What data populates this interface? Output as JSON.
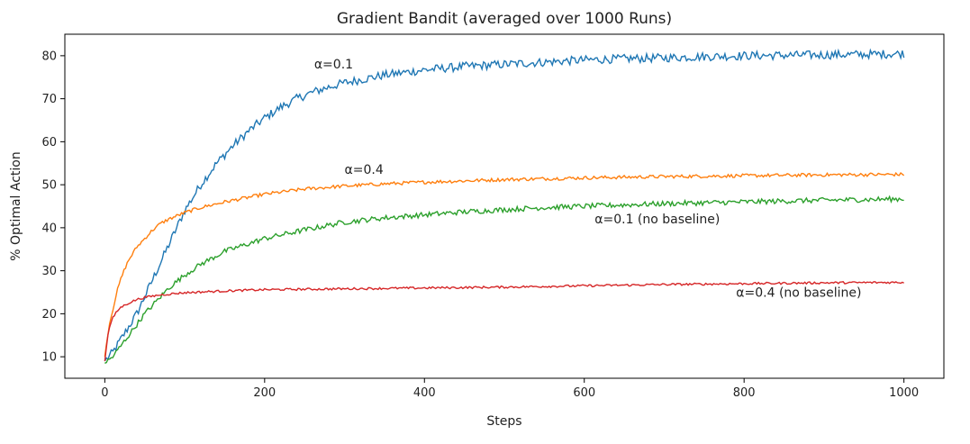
{
  "chart_data": {
    "type": "line",
    "title": "Gradient Bandit (averaged over 1000 Runs)",
    "xlabel": "Steps",
    "ylabel": "% Optimal Action",
    "xlim": [
      -50,
      1050
    ],
    "ylim": [
      5,
      85
    ],
    "xticks": [
      0,
      200,
      400,
      600,
      800,
      1000
    ],
    "yticks": [
      10,
      20,
      30,
      40,
      50,
      60,
      70,
      80
    ],
    "grid": false,
    "legend": "none",
    "series": [
      {
        "color": "#1f77b4",
        "points": [
          [
            0,
            9
          ],
          [
            10,
            11
          ],
          [
            20,
            14
          ],
          [
            30,
            17
          ],
          [
            40,
            20
          ],
          [
            50,
            24
          ],
          [
            60,
            28
          ],
          [
            70,
            32
          ],
          [
            80,
            36
          ],
          [
            90,
            40
          ],
          [
            100,
            44
          ],
          [
            120,
            50
          ],
          [
            140,
            55
          ],
          [
            160,
            59
          ],
          [
            180,
            62.5
          ],
          [
            200,
            65.5
          ],
          [
            220,
            68
          ],
          [
            240,
            70
          ],
          [
            260,
            71.5
          ],
          [
            280,
            72.7
          ],
          [
            300,
            73.7
          ],
          [
            350,
            75.5
          ],
          [
            400,
            76.7
          ],
          [
            450,
            77.5
          ],
          [
            500,
            78
          ],
          [
            550,
            78.5
          ],
          [
            600,
            79
          ],
          [
            650,
            79.3
          ],
          [
            700,
            79.5
          ],
          [
            750,
            79.8
          ],
          [
            800,
            80
          ],
          [
            850,
            80.1
          ],
          [
            900,
            80.2
          ],
          [
            950,
            80.3
          ],
          [
            1000,
            80.5
          ]
        ],
        "noise": 1.0
      },
      {
        "color": "#ff7f0e",
        "points": [
          [
            0,
            10
          ],
          [
            5,
            17
          ],
          [
            10,
            21
          ],
          [
            15,
            25
          ],
          [
            20,
            28
          ],
          [
            25,
            30.5
          ],
          [
            30,
            32.5
          ],
          [
            40,
            35.5
          ],
          [
            50,
            37.5
          ],
          [
            60,
            39.5
          ],
          [
            70,
            41
          ],
          [
            80,
            42
          ],
          [
            100,
            43.5
          ],
          [
            120,
            44.7
          ],
          [
            150,
            46
          ],
          [
            200,
            47.8
          ],
          [
            250,
            49
          ],
          [
            300,
            49.7
          ],
          [
            350,
            50.2
          ],
          [
            400,
            50.6
          ],
          [
            450,
            50.9
          ],
          [
            500,
            51.2
          ],
          [
            600,
            51.6
          ],
          [
            700,
            51.9
          ],
          [
            800,
            52.1
          ],
          [
            900,
            52.3
          ],
          [
            1000,
            52.4
          ]
        ],
        "noise": 0.4
      },
      {
        "color": "#2ca02c",
        "points": [
          [
            0,
            8.5
          ],
          [
            10,
            10
          ],
          [
            20,
            12.5
          ],
          [
            30,
            15
          ],
          [
            40,
            17.5
          ],
          [
            50,
            20
          ],
          [
            60,
            22
          ],
          [
            70,
            24
          ],
          [
            80,
            26
          ],
          [
            100,
            29
          ],
          [
            120,
            31.5
          ],
          [
            150,
            34.5
          ],
          [
            200,
            37.5
          ],
          [
            250,
            39.5
          ],
          [
            300,
            41.3
          ],
          [
            350,
            42.3
          ],
          [
            400,
            43
          ],
          [
            450,
            43.7
          ],
          [
            500,
            44.2
          ],
          [
            550,
            44.7
          ],
          [
            600,
            45
          ],
          [
            700,
            45.6
          ],
          [
            800,
            46
          ],
          [
            900,
            46.4
          ],
          [
            1000,
            46.7
          ]
        ],
        "noise": 0.6
      },
      {
        "color": "#d62728",
        "points": [
          [
            0,
            9
          ],
          [
            3,
            14
          ],
          [
            6,
            17
          ],
          [
            10,
            19
          ],
          [
            15,
            20.5
          ],
          [
            20,
            21.5
          ],
          [
            30,
            22.5
          ],
          [
            40,
            23.3
          ],
          [
            50,
            23.8
          ],
          [
            70,
            24.4
          ],
          [
            100,
            24.9
          ],
          [
            150,
            25.3
          ],
          [
            200,
            25.6
          ],
          [
            300,
            25.8
          ],
          [
            400,
            26
          ],
          [
            500,
            26.2
          ],
          [
            600,
            26.5
          ],
          [
            700,
            26.8
          ],
          [
            800,
            27
          ],
          [
            900,
            27.2
          ],
          [
            1000,
            27.3
          ]
        ],
        "noise": 0.25
      }
    ],
    "annotations": [
      {
        "text": "α=0.1",
        "x": 262,
        "y": 77
      },
      {
        "text": "α=0.4",
        "x": 300,
        "y": 52.5
      },
      {
        "text": "α=0.1 (no baseline)",
        "x": 613,
        "y": 41
      },
      {
        "text": "α=0.4 (no baseline)",
        "x": 790,
        "y": 24
      }
    ]
  }
}
